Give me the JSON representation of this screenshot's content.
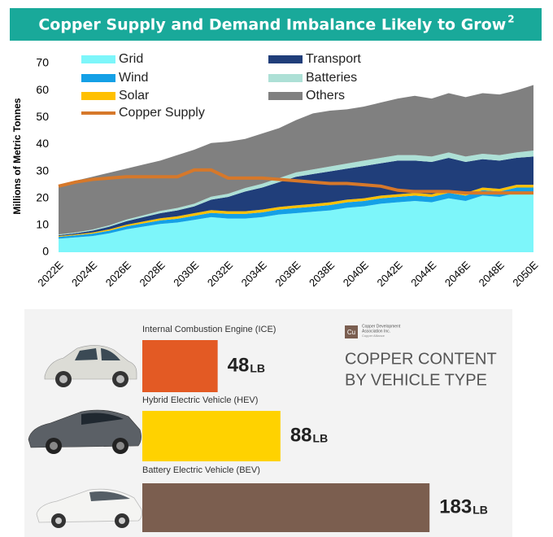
{
  "chart_data": [
    {
      "type": "area",
      "title": "Copper Supply and Demand Imbalance Likely to Grow",
      "title_superscript": "2",
      "y_label": "Millions of Metric Tonnes",
      "categories": [
        "2022E",
        null,
        "2024E",
        null,
        "2026E",
        null,
        "2028E",
        null,
        "2030E",
        null,
        "2032E",
        null,
        "2034E",
        null,
        "2036E",
        null,
        "2038E",
        null,
        "2040E",
        null,
        "2042E",
        null,
        "2044E",
        null,
        "2046E",
        null,
        "2048E",
        null,
        "2050E"
      ],
      "ylim": [
        0,
        70
      ],
      "yticks": [
        0,
        10,
        20,
        30,
        40,
        50,
        60,
        70
      ],
      "stacked": true,
      "series": [
        {
          "name": "Grid",
          "color": "#7df6fa",
          "values": [
            5,
            5.5,
            6,
            7,
            8.5,
            9.5,
            10.5,
            11,
            12,
            13,
            12.5,
            12.5,
            13,
            14,
            14.5,
            15,
            15.5,
            16.5,
            17,
            18,
            18.5,
            19,
            18.5,
            20,
            19,
            21,
            20.5,
            22,
            22
          ]
        },
        {
          "name": "Wind",
          "color": "#14a0e6",
          "values": [
            0.7,
            0.8,
            0.9,
            1,
            1.1,
            1.2,
            1.3,
            1.4,
            1.5,
            1.6,
            1.7,
            1.7,
            1.8,
            1.8,
            1.9,
            1.9,
            2,
            2,
            2,
            2,
            2,
            2,
            2,
            2,
            2,
            2,
            2,
            2,
            2
          ]
        },
        {
          "name": "Solar",
          "color": "#ffc000",
          "values": [
            0.3,
            0.3,
            0.4,
            0.5,
            0.6,
            0.7,
            0.8,
            0.9,
            1,
            1,
            1,
            1,
            1,
            1,
            1,
            1,
            1,
            1,
            1,
            1,
            1,
            1,
            1,
            1,
            1,
            1,
            1,
            1,
            1
          ]
        },
        {
          "name": "Transport",
          "color": "#203e7a",
          "values": [
            0.3,
            0.4,
            0.7,
            1,
            1.3,
            1.6,
            1.9,
            2.2,
            2.5,
            3.9,
            5.3,
            7.3,
            8.2,
            9.2,
            10.6,
            11.1,
            11.5,
            11.5,
            12,
            12,
            12.5,
            12,
            12,
            12,
            11.5,
            10.5,
            10.5,
            10,
            10.5
          ]
        },
        {
          "name": "Batteries",
          "color": "#ade0d6",
          "values": [
            0.3,
            0.3,
            0.4,
            0.5,
            0.6,
            0.7,
            0.8,
            0.9,
            1,
            1.1,
            1.2,
            1.3,
            1.4,
            1.5,
            1.6,
            1.7,
            1.8,
            1.9,
            2,
            2,
            2,
            2,
            2,
            2,
            2,
            2,
            2,
            2,
            2.2
          ]
        },
        {
          "name": "Others",
          "color": "#808080",
          "values": [
            18.4,
            19.2,
            19.6,
            19.5,
            18.9,
            18.8,
            18.7,
            19.6,
            20,
            19.9,
            19.3,
            18.2,
            18.6,
            18.5,
            19.4,
            20.8,
            20.7,
            20.1,
            20,
            20.5,
            21,
            22,
            21.5,
            22,
            22,
            22.5,
            22.5,
            23,
            24.3
          ]
        },
        {
          "name": "Copper Supply",
          "color": "#d6782a",
          "kind": "line",
          "values": [
            24.5,
            26,
            27,
            27.5,
            28,
            28,
            28,
            28,
            30.5,
            30.5,
            27.5,
            27.5,
            27.5,
            27,
            26.5,
            26,
            25.5,
            25.5,
            25,
            24.5,
            23,
            22.5,
            22.5,
            22.5,
            22,
            22,
            22,
            22,
            22
          ]
        }
      ]
    },
    {
      "type": "bar",
      "orientation": "horizontal",
      "title_lines": [
        "COPPER CONTENT",
        "BY VEHICLE TYPE"
      ],
      "logo": "Cu",
      "source_lines": [
        "Copper Development",
        "Association Inc.",
        "Copper Alliance"
      ],
      "categories": [
        "Internal Combustion Engine (ICE)",
        "Hybrid Electric Vehicle (HEV)",
        "Battery Electric Vehicle (BEV)"
      ],
      "values": [
        48,
        88,
        183
      ],
      "unit": "LB",
      "colors": [
        "#e35a24",
        "#ffd200",
        "#7b5e4f"
      ]
    }
  ]
}
